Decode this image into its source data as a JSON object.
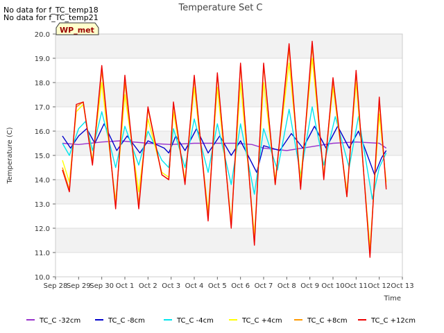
{
  "chart_data": {
    "type": "line",
    "title": "Temperature Set C",
    "ylabel": "Temperature (C)",
    "xlabel": "Time",
    "ylim": [
      10.0,
      20.0
    ],
    "xlim_days": [
      0,
      15
    ],
    "grid": true,
    "notes": [
      "No data for f_TC_temp18",
      "No data for f_TC_temp21"
    ],
    "station_label": "WP_met",
    "x_ticks": [
      {
        "day": 0,
        "label": "Sep 28"
      },
      {
        "day": 1,
        "label": "Sep 29"
      },
      {
        "day": 2,
        "label": "Sep 30"
      },
      {
        "day": 3,
        "label": "Oct 1"
      },
      {
        "day": 4,
        "label": "Oct 2"
      },
      {
        "day": 5,
        "label": "Oct 3"
      },
      {
        "day": 6,
        "label": "Oct 4"
      },
      {
        "day": 7,
        "label": "Oct 5"
      },
      {
        "day": 8,
        "label": "Oct 6"
      },
      {
        "day": 9,
        "label": "Oct 7"
      },
      {
        "day": 10,
        "label": "Oct 8"
      },
      {
        "day": 11,
        "label": "Oct 9"
      },
      {
        "day": 12,
        "label": "Oct 10"
      },
      {
        "day": 13,
        "label": "Oct 11"
      },
      {
        "day": 14,
        "label": "Oct 12"
      },
      {
        "day": 15,
        "label": "Oct 13"
      }
    ],
    "y_ticks": [
      {
        "value": 10.0,
        "label": "10.0"
      },
      {
        "value": 11.0,
        "label": "11.0"
      },
      {
        "value": 12.0,
        "label": "12.0"
      },
      {
        "value": 13.0,
        "label": "13.0"
      },
      {
        "value": 14.0,
        "label": "14.0"
      },
      {
        "value": 15.0,
        "label": "15.0"
      },
      {
        "value": 16.0,
        "label": "16.0"
      },
      {
        "value": 17.0,
        "label": "17.0"
      },
      {
        "value": 18.0,
        "label": "18.0"
      },
      {
        "value": 19.0,
        "label": "19.0"
      },
      {
        "value": 20.0,
        "label": "20.0"
      }
    ],
    "series": [
      {
        "name": "TC_C -32cm",
        "color": "#9933cc",
        "points": [
          [
            0.3,
            15.5
          ],
          [
            1.0,
            15.45
          ],
          [
            2.0,
            15.55
          ],
          [
            2.8,
            15.6
          ],
          [
            4.0,
            15.5
          ],
          [
            5.0,
            15.45
          ],
          [
            6.0,
            15.5
          ],
          [
            7.0,
            15.5
          ],
          [
            7.8,
            15.5
          ],
          [
            8.5,
            15.45
          ],
          [
            9.0,
            15.3
          ],
          [
            10.0,
            15.2
          ],
          [
            11.0,
            15.35
          ],
          [
            12.0,
            15.5
          ],
          [
            13.0,
            15.55
          ],
          [
            14.0,
            15.5
          ],
          [
            14.3,
            15.3
          ]
        ]
      },
      {
        "name": "TC_C -8cm",
        "color": "#0000cc",
        "points": [
          [
            0.3,
            15.8
          ],
          [
            0.65,
            15.3
          ],
          [
            1.0,
            15.8
          ],
          [
            1.35,
            16.1
          ],
          [
            1.7,
            15.5
          ],
          [
            2.1,
            16.3
          ],
          [
            2.65,
            15.2
          ],
          [
            3.1,
            15.8
          ],
          [
            3.65,
            15.1
          ],
          [
            4.0,
            15.6
          ],
          [
            4.7,
            15.3
          ],
          [
            4.9,
            15.1
          ],
          [
            5.2,
            15.8
          ],
          [
            5.6,
            15.2
          ],
          [
            6.1,
            16.1
          ],
          [
            6.6,
            15.1
          ],
          [
            7.1,
            15.8
          ],
          [
            7.6,
            15.0
          ],
          [
            8.0,
            15.6
          ],
          [
            8.7,
            14.3
          ],
          [
            9.0,
            15.4
          ],
          [
            9.7,
            15.2
          ],
          [
            10.2,
            15.9
          ],
          [
            10.7,
            15.3
          ],
          [
            11.2,
            16.2
          ],
          [
            11.7,
            15.3
          ],
          [
            12.2,
            16.2
          ],
          [
            12.7,
            15.3
          ],
          [
            13.1,
            16.0
          ],
          [
            13.8,
            14.2
          ],
          [
            14.1,
            14.9
          ],
          [
            14.3,
            15.2
          ]
        ]
      },
      {
        "name": "TC_C -4cm",
        "color": "#00e5ee",
        "points": [
          [
            0.3,
            15.5
          ],
          [
            0.6,
            15.0
          ],
          [
            1.0,
            16.1
          ],
          [
            1.3,
            16.4
          ],
          [
            1.6,
            15.2
          ],
          [
            2.0,
            16.8
          ],
          [
            2.6,
            14.5
          ],
          [
            3.0,
            16.2
          ],
          [
            3.6,
            14.6
          ],
          [
            4.0,
            16.0
          ],
          [
            4.6,
            14.8
          ],
          [
            4.9,
            14.5
          ],
          [
            5.1,
            16.1
          ],
          [
            5.6,
            14.5
          ],
          [
            6.0,
            16.5
          ],
          [
            6.6,
            14.3
          ],
          [
            7.0,
            16.3
          ],
          [
            7.6,
            13.8
          ],
          [
            8.0,
            16.3
          ],
          [
            8.6,
            13.4
          ],
          [
            9.0,
            16.1
          ],
          [
            9.6,
            14.4
          ],
          [
            10.1,
            16.9
          ],
          [
            10.6,
            14.2
          ],
          [
            11.1,
            17.0
          ],
          [
            11.6,
            14.6
          ],
          [
            12.1,
            16.6
          ],
          [
            12.7,
            14.5
          ],
          [
            13.1,
            16.6
          ],
          [
            13.7,
            13.2
          ],
          [
            14.0,
            14.5
          ],
          [
            14.3,
            15.1
          ]
        ]
      },
      {
        "name": "TC_C +4cm",
        "color": "#ffff00",
        "points": [
          [
            0.3,
            14.8
          ],
          [
            0.6,
            13.9
          ],
          [
            0.9,
            16.8
          ],
          [
            1.2,
            17.1
          ],
          [
            1.6,
            14.8
          ],
          [
            2.0,
            18.0
          ],
          [
            2.6,
            13.1
          ],
          [
            3.0,
            17.5
          ],
          [
            3.6,
            13.5
          ],
          [
            4.0,
            16.5
          ],
          [
            4.6,
            14.3
          ],
          [
            4.9,
            14.1
          ],
          [
            5.1,
            16.8
          ],
          [
            5.6,
            14.0
          ],
          [
            6.0,
            17.8
          ],
          [
            6.6,
            12.7
          ],
          [
            7.0,
            17.8
          ],
          [
            7.6,
            12.3
          ],
          [
            8.0,
            18.0
          ],
          [
            8.6,
            11.7
          ],
          [
            9.0,
            18.0
          ],
          [
            9.5,
            14.0
          ],
          [
            10.1,
            18.8
          ],
          [
            10.6,
            14.0
          ],
          [
            11.1,
            19.0
          ],
          [
            11.6,
            14.2
          ],
          [
            12.0,
            17.8
          ],
          [
            12.6,
            13.5
          ],
          [
            13.0,
            18.0
          ],
          [
            13.6,
            11.2
          ],
          [
            14.0,
            16.7
          ],
          [
            14.3,
            13.9
          ]
        ]
      },
      {
        "name": "TC_C +8cm",
        "color": "#ff9900",
        "points": [
          [
            0.3,
            14.5
          ],
          [
            0.6,
            13.6
          ],
          [
            0.9,
            17.0
          ],
          [
            1.2,
            17.2
          ],
          [
            1.6,
            14.7
          ],
          [
            2.0,
            18.5
          ],
          [
            2.6,
            12.9
          ],
          [
            3.0,
            18.0
          ],
          [
            3.6,
            13.0
          ],
          [
            4.0,
            16.9
          ],
          [
            4.6,
            14.2
          ],
          [
            4.9,
            14.0
          ],
          [
            5.1,
            17.1
          ],
          [
            5.6,
            13.9
          ],
          [
            6.0,
            18.2
          ],
          [
            6.6,
            12.5
          ],
          [
            7.0,
            18.3
          ],
          [
            7.6,
            12.1
          ],
          [
            8.0,
            18.7
          ],
          [
            8.6,
            11.4
          ],
          [
            9.0,
            18.7
          ],
          [
            9.5,
            13.8
          ],
          [
            10.1,
            19.4
          ],
          [
            10.6,
            13.7
          ],
          [
            11.1,
            19.5
          ],
          [
            11.6,
            14.1
          ],
          [
            12.0,
            18.1
          ],
          [
            12.6,
            13.3
          ],
          [
            13.0,
            18.4
          ],
          [
            13.6,
            10.9
          ],
          [
            14.0,
            17.2
          ],
          [
            14.3,
            13.7
          ]
        ]
      },
      {
        "name": "TC_C +12cm",
        "color": "#ee0000",
        "points": [
          [
            0.3,
            14.4
          ],
          [
            0.6,
            13.5
          ],
          [
            0.9,
            17.1
          ],
          [
            1.2,
            17.2
          ],
          [
            1.6,
            14.6
          ],
          [
            2.0,
            18.7
          ],
          [
            2.6,
            12.8
          ],
          [
            3.0,
            18.3
          ],
          [
            3.6,
            12.8
          ],
          [
            4.0,
            17.0
          ],
          [
            4.6,
            14.2
          ],
          [
            4.9,
            14.0
          ],
          [
            5.1,
            17.2
          ],
          [
            5.6,
            13.8
          ],
          [
            6.0,
            18.3
          ],
          [
            6.6,
            12.3
          ],
          [
            7.0,
            18.4
          ],
          [
            7.6,
            12.0
          ],
          [
            8.0,
            18.8
          ],
          [
            8.6,
            11.3
          ],
          [
            9.0,
            18.8
          ],
          [
            9.5,
            13.8
          ],
          [
            10.1,
            19.6
          ],
          [
            10.6,
            13.6
          ],
          [
            11.1,
            19.7
          ],
          [
            11.6,
            14.0
          ],
          [
            12.0,
            18.2
          ],
          [
            12.6,
            13.3
          ],
          [
            13.0,
            18.5
          ],
          [
            13.6,
            10.8
          ],
          [
            14.0,
            17.4
          ],
          [
            14.3,
            13.6
          ]
        ]
      }
    ]
  }
}
